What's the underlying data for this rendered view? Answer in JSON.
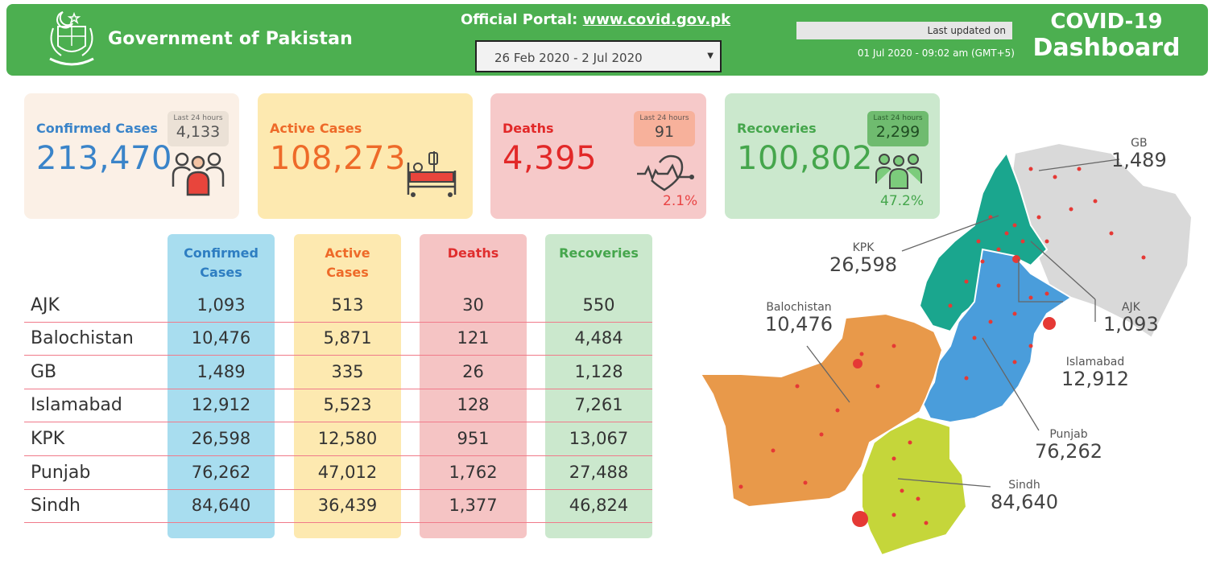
{
  "header": {
    "gov_title": "Government of Pakistan",
    "portal_label": "Official Portal:",
    "portal_url": "www.covid.gov.pk",
    "date_range": "26 Feb 2020 - 2 Jul 2020",
    "last_updated_label": "Last updated on",
    "last_updated_time": "01 Jul 2020 - 09:02 am (GMT+5)",
    "dash_title_1": "COVID-19",
    "dash_title_2": "Dashboard"
  },
  "cards": {
    "confirmed": {
      "label": "Confirmed Cases",
      "value": "213,470",
      "delta_label": "Last 24 hours",
      "delta": "4,133"
    },
    "active": {
      "label": "Active Cases",
      "value": "108,273"
    },
    "deaths": {
      "label": "Deaths",
      "value": "4,395",
      "delta_label": "Last 24 hours",
      "delta": "91",
      "pct": "2.1%"
    },
    "recoveries": {
      "label": "Recoveries",
      "value": "100,802",
      "delta_label": "Last 24 hours",
      "delta": "2,299",
      "pct": "47.2%"
    }
  },
  "table": {
    "headers": {
      "confirmed_1": "Confirmed",
      "confirmed_2": "Cases",
      "active_1": "Active",
      "active_2": "Cases",
      "deaths": "Deaths",
      "recoveries": "Recoveries"
    },
    "rows": [
      {
        "region": "AJK",
        "confirmed": "1,093",
        "active": "513",
        "deaths": "30",
        "recoveries": "550"
      },
      {
        "region": "Balochistan",
        "confirmed": "10,476",
        "active": "5,871",
        "deaths": "121",
        "recoveries": "4,484"
      },
      {
        "region": "GB",
        "confirmed": "1,489",
        "active": "335",
        "deaths": "26",
        "recoveries": "1,128"
      },
      {
        "region": "Islamabad",
        "confirmed": "12,912",
        "active": "5,523",
        "deaths": "128",
        "recoveries": "7,261"
      },
      {
        "region": "KPK",
        "confirmed": "26,598",
        "active": "12,580",
        "deaths": "951",
        "recoveries": "13,067"
      },
      {
        "region": "Punjab",
        "confirmed": "76,262",
        "active": "47,012",
        "deaths": "1,762",
        "recoveries": "27,488"
      },
      {
        "region": "Sindh",
        "confirmed": "84,640",
        "active": "36,439",
        "deaths": "1,377",
        "recoveries": "46,824"
      }
    ]
  },
  "map_labels": {
    "gb": {
      "name": "GB",
      "value": "1,489"
    },
    "kpk": {
      "name": "KPK",
      "value": "26,598"
    },
    "balochistan": {
      "name": "Balochistan",
      "value": "10,476"
    },
    "ajk": {
      "name": "AJK",
      "value": "1,093"
    },
    "islamabad": {
      "name": "Islamabad",
      "value": "12,912"
    },
    "punjab": {
      "name": "Punjab",
      "value": "76,262"
    },
    "sindh": {
      "name": "Sindh",
      "value": "84,640"
    }
  },
  "colors": {
    "header": "#4caf50",
    "confirmed": "#3a84c9",
    "active": "#ee6a29",
    "deaths": "#e22828",
    "recoveries": "#45a64c",
    "map_gb_ajk": "#d9d9d9",
    "map_kpk": "#1aa68e",
    "map_punjab": "#4a9ddb",
    "map_balochistan": "#e8994a",
    "map_sindh": "#c5d63a"
  }
}
